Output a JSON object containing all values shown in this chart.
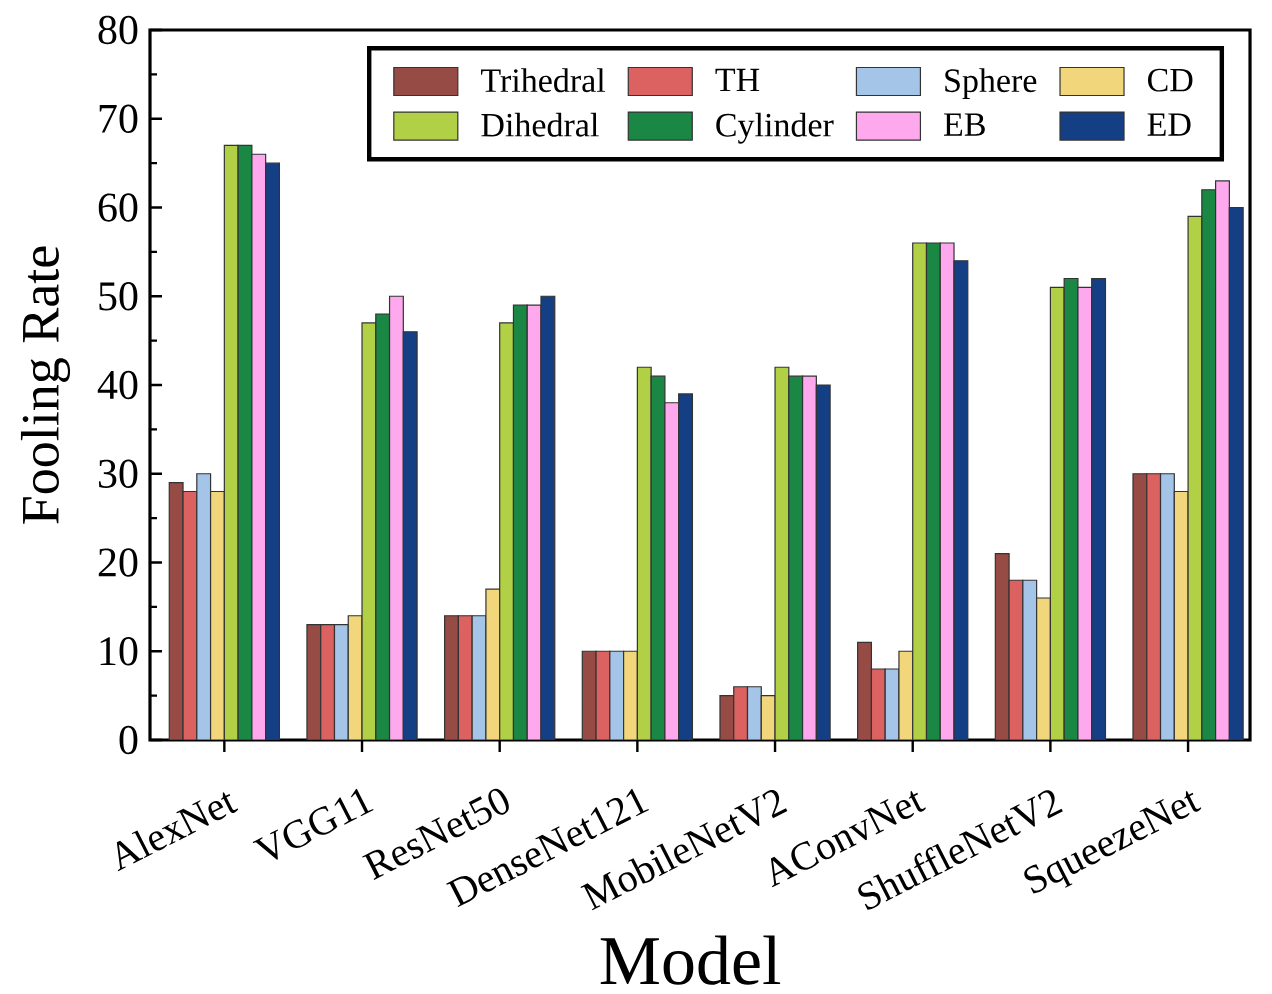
{
  "chart_data": {
    "type": "bar",
    "xlabel": "Model",
    "ylabel": "Fooling Rate",
    "categories": [
      "AlexNet",
      "VGG11",
      "ResNet50",
      "DenseNet121",
      "MobileNetV2",
      "AConvNet",
      "ShuffleNetV2",
      "SqueezeNet"
    ],
    "series": [
      {
        "name": "Trihedral",
        "color": "#964b45",
        "values": [
          29,
          13,
          14,
          10,
          5,
          11,
          21,
          30
        ]
      },
      {
        "name": "TH",
        "color": "#db6260",
        "values": [
          28,
          13,
          14,
          10,
          6,
          8,
          18,
          30
        ]
      },
      {
        "name": "Sphere",
        "color": "#a4c4e8",
        "values": [
          30,
          13,
          14,
          10,
          6,
          8,
          18,
          30
        ]
      },
      {
        "name": "CD",
        "color": "#f1d67c",
        "values": [
          28,
          14,
          17,
          10,
          5,
          10,
          16,
          28
        ]
      },
      {
        "name": "Dihedral",
        "color": "#b2d046",
        "values": [
          67,
          47,
          47,
          42,
          42,
          56,
          51,
          59
        ]
      },
      {
        "name": "Cylinder",
        "color": "#1a8744",
        "values": [
          67,
          48,
          49,
          41,
          41,
          56,
          52,
          62
        ]
      },
      {
        "name": "EB",
        "color": "#fea8ee",
        "values": [
          66,
          50,
          49,
          38,
          41,
          56,
          51,
          63
        ]
      },
      {
        "name": "ED",
        "color": "#153f84",
        "values": [
          65,
          46,
          50,
          39,
          40,
          54,
          52,
          60
        ]
      }
    ],
    "ylim": [
      0,
      80
    ],
    "yticks": [
      0,
      {
        "value": 5,
        "label": null
      },
      10,
      {
        "value": 15,
        "label": null
      },
      20,
      {
        "value": 25,
        "label": null
      },
      30,
      {
        "value": 35,
        "label": null
      },
      40,
      {
        "value": 45,
        "label": null
      },
      50,
      {
        "value": 55,
        "label": null
      },
      60,
      {
        "value": 65,
        "label": null
      },
      70,
      {
        "value": 75,
        "label": null
      },
      80
    ],
    "legend": "top right"
  }
}
